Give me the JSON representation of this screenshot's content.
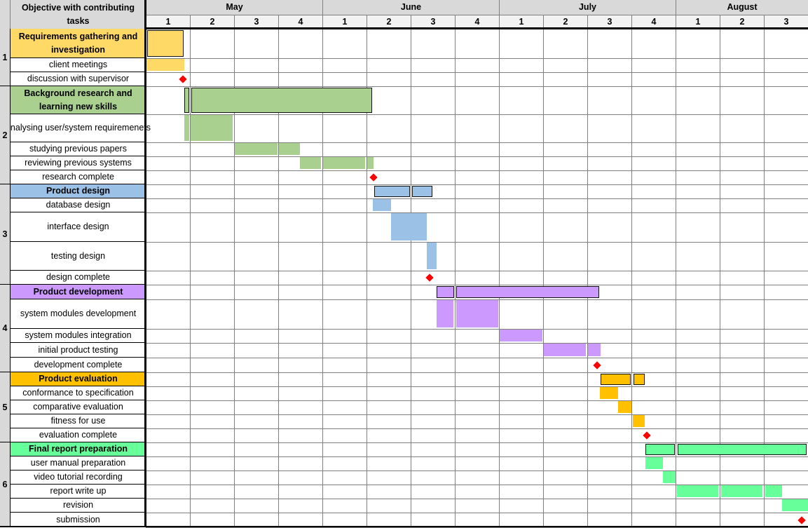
{
  "header": {
    "task_column": "Objective with contributing tasks"
  },
  "chart_data": {
    "type": "gantt",
    "title": "",
    "time_unit": "week",
    "months": [
      {
        "name": "May",
        "weeks": [
          "1",
          "2",
          "3",
          "4"
        ]
      },
      {
        "name": "June",
        "weeks": [
          "1",
          "2",
          "3",
          "4"
        ]
      },
      {
        "name": "July",
        "weeks": [
          "1",
          "2",
          "3",
          "4"
        ]
      },
      {
        "name": "August",
        "weeks": [
          "1",
          "2",
          "3"
        ]
      }
    ],
    "groups": [
      {
        "number": "1",
        "color": "#FFD966",
        "tasks": [
          {
            "label": "Requirements gathering and investigation",
            "summary": true,
            "segments": [
              [
                0.03,
                0.86
              ]
            ]
          },
          {
            "label": "client meetings",
            "segments": [
              [
                0.0,
                0.87
              ]
            ]
          },
          {
            "label": "discussion with supervisor",
            "milestone": 0.84
          }
        ]
      },
      {
        "number": "2",
        "color": "#A9D08E",
        "tasks": [
          {
            "label": "Background research and learning new skills",
            "summary": true,
            "segments": [
              [
                0.87,
                0.98
              ],
              [
                1.03,
                5.12
              ]
            ]
          },
          {
            "label": "analysing user/system requiremenets",
            "segments": [
              [
                0.87,
                0.98
              ],
              [
                1.02,
                1.97
              ]
            ]
          },
          {
            "label": "studying previous papers",
            "segments": [
              [
                2.02,
                2.98
              ],
              [
                3.02,
                3.49
              ]
            ]
          },
          {
            "label": "reviewing previous systems",
            "segments": [
              [
                3.49,
                3.97
              ],
              [
                4.02,
                4.97
              ],
              [
                5.02,
                5.16
              ]
            ]
          },
          {
            "label": "research complete",
            "milestone": 5.16
          }
        ]
      },
      {
        "number": "3",
        "color": "#9BC2E6",
        "tasks": [
          {
            "label": "Product design",
            "summary": true,
            "segments": [
              [
                5.17,
                5.98
              ],
              [
                6.03,
                6.5
              ]
            ]
          },
          {
            "label": "database design",
            "segments": [
              [
                5.14,
                5.56
              ]
            ]
          },
          {
            "label": "interface design",
            "segments": [
              [
                5.56,
                6.37
              ]
            ]
          },
          {
            "label": "testing design",
            "segments": [
              [
                6.37,
                6.58
              ]
            ]
          },
          {
            "label": "design complete",
            "milestone": 6.43
          }
        ]
      },
      {
        "number": "4",
        "color": "#CC99FF",
        "tasks": [
          {
            "label": "Product development",
            "summary": true,
            "segments": [
              [
                6.58,
                6.98
              ],
              [
                7.03,
                10.27
              ]
            ]
          },
          {
            "label": "system modules development",
            "segments": [
              [
                6.58,
                6.97
              ],
              [
                7.03,
                7.98
              ]
            ]
          },
          {
            "label": "system modules integration",
            "segments": [
              [
                8.02,
                8.98
              ]
            ]
          },
          {
            "label": "initial product testing",
            "segments": [
              [
                9.02,
                9.97
              ],
              [
                10.02,
                10.3
              ]
            ]
          },
          {
            "label": "development complete",
            "milestone": 10.23
          }
        ]
      },
      {
        "number": "5",
        "color": "#FFC000",
        "tasks": [
          {
            "label": "Product evaluation",
            "summary": true,
            "segments": [
              [
                10.3,
                10.98
              ],
              [
                11.04,
                11.3
              ]
            ]
          },
          {
            "label": "conformance to specification",
            "segments": [
              [
                10.28,
                10.7
              ]
            ]
          },
          {
            "label": "comparative evaluation",
            "segments": [
              [
                10.7,
                11.0
              ]
            ]
          },
          {
            "label": "fitness for use",
            "segments": [
              [
                11.03,
                11.3
              ]
            ]
          },
          {
            "label": "evaluation complete",
            "milestone": 11.35
          }
        ]
      },
      {
        "number": "6",
        "color": "#66FF99",
        "tasks": [
          {
            "label": "Final report preparation",
            "summary": true,
            "segments": [
              [
                11.32,
                11.98
              ],
              [
                12.04,
                14.97
              ]
            ]
          },
          {
            "label": "user manual preparation",
            "segments": [
              [
                11.32,
                11.72
              ]
            ]
          },
          {
            "label": "video tutorial recording",
            "segments": [
              [
                11.72,
                12.0
              ]
            ]
          },
          {
            "label": "report write up",
            "segments": [
              [
                12.03,
                12.97
              ],
              [
                13.03,
                13.97
              ],
              [
                14.03,
                14.41
              ]
            ]
          },
          {
            "label": "revision",
            "segments": [
              [
                14.41,
                15.0
              ]
            ]
          },
          {
            "label": "submission",
            "milestone": 14.85
          }
        ]
      }
    ],
    "milestone_color": "#FF0000"
  }
}
